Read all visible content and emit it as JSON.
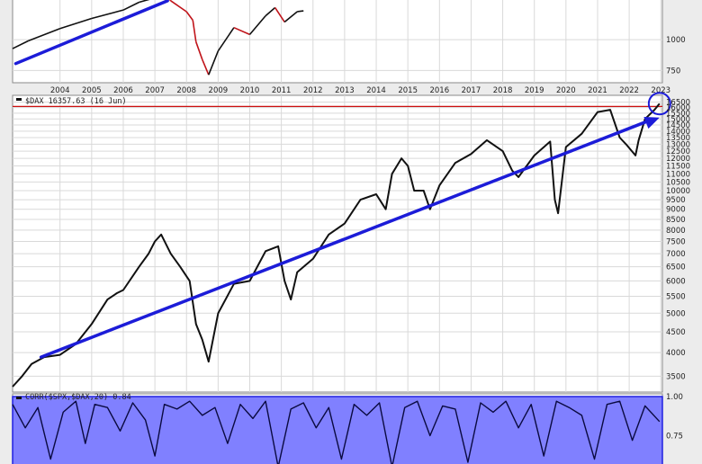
{
  "colors": {
    "price_line": "#111111",
    "top_line_down": "#c0141a",
    "trend_arrow": "#1c1cd8",
    "resistance_line": "#cc1010",
    "corr_fill": "#8080ff",
    "corr_border": "#2020e0"
  },
  "x_axis": {
    "years": [
      "2004",
      "2005",
      "2006",
      "2007",
      "2008",
      "2009",
      "2010",
      "2011",
      "2012",
      "2013",
      "2014",
      "2015",
      "2016",
      "2017",
      "2018",
      "2019",
      "2020",
      "2021",
      "2022",
      "2023"
    ]
  },
  "top_panel": {
    "y_ticks": [
      1000,
      750
    ]
  },
  "dax_panel": {
    "legend": "$DAX 16357.63 (16 Jun)",
    "y_ticks": [
      16500,
      16000,
      15500,
      15000,
      14500,
      14000,
      13500,
      13000,
      12500,
      12000,
      11500,
      11000,
      10500,
      10000,
      9500,
      9000,
      8500,
      8000,
      7500,
      7000,
      6500,
      6000,
      5500,
      5000,
      4500,
      4000,
      3500
    ]
  },
  "corr_panel": {
    "legend": "CORR($SPX,$DAX,20) 0.84",
    "y_ticks": [
      "1.00",
      "0.75"
    ]
  },
  "chart_data": [
    {
      "type": "line",
      "panel": "top",
      "y_scale": "log",
      "ylim": [
        680,
        1450
      ],
      "series": [
        {
          "x": [
            2003.0,
            2003.5,
            2004.5,
            2005.5,
            2006.5,
            2007.0,
            2007.5,
            2007.8,
            2008.0,
            2008.5,
            2008.7,
            2008.8,
            2009.0,
            2009.2,
            2009.5,
            2010.0,
            2010.5,
            2011.0,
            2011.3,
            2011.6,
            2012.0,
            2012.2
          ],
          "y": [
            920,
            990,
            1110,
            1220,
            1320,
            1420,
            1480,
            1540,
            1440,
            1300,
            1200,
            980,
            830,
            720,
            900,
            1120,
            1050,
            1250,
            1350,
            1180,
            1300,
            1310
          ]
        }
      ],
      "trendline": {
        "x": [
          2003.1,
          2007.9
        ],
        "y": [
          800,
          1440
        ]
      }
    },
    {
      "type": "line",
      "panel": "main",
      "title": "$DAX",
      "last_value": 16357.63,
      "y_scale": "log",
      "ylim": [
        3200,
        16800
      ],
      "series": [
        {
          "x": [
            2003.0,
            2003.3,
            2003.6,
            2004.0,
            2004.5,
            2005.0,
            2005.5,
            2006.0,
            2006.3,
            2006.5,
            2007.0,
            2007.3,
            2007.5,
            2007.7,
            2008.0,
            2008.3,
            2008.6,
            2008.8,
            2009.0,
            2009.2,
            2009.5,
            2010.0,
            2010.5,
            2011.0,
            2011.4,
            2011.6,
            2011.8,
            2012.0,
            2012.5,
            2013.0,
            2013.5,
            2014.0,
            2014.5,
            2014.8,
            2015.0,
            2015.3,
            2015.5,
            2015.7,
            2016.0,
            2016.2,
            2016.5,
            2017.0,
            2017.5,
            2018.0,
            2018.5,
            2018.8,
            2019.0,
            2019.5,
            2020.0,
            2020.15,
            2020.25,
            2020.5,
            2021.0,
            2021.5,
            2021.9,
            2022.2,
            2022.4,
            2022.7,
            2022.8,
            2023.0,
            2023.3,
            2023.46
          ],
          "y": [
            3300,
            3500,
            3750,
            3900,
            3950,
            4200,
            4700,
            5400,
            5600,
            5700,
            6500,
            7000,
            7500,
            7800,
            7000,
            6500,
            6000,
            4700,
            4300,
            3800,
            5000,
            5900,
            6000,
            7100,
            7300,
            6000,
            5400,
            6300,
            6800,
            7800,
            8300,
            9500,
            9800,
            9000,
            11000,
            12000,
            11500,
            10000,
            10000,
            9000,
            10300,
            11700,
            12300,
            13300,
            12500,
            11200,
            10800,
            12200,
            13200,
            9500,
            8800,
            12800,
            13800,
            15600,
            15800,
            13500,
            13000,
            12200,
            13300,
            15000,
            15800,
            16357.63
          ]
        }
      ],
      "trendline": {
        "x": [
          2003.9,
          2023.3
        ],
        "y": [
          3900,
          14950
        ]
      },
      "resistance": 16100
    },
    {
      "type": "area",
      "panel": "correlation",
      "title": "CORR($SPX,$DAX,20)",
      "last_value": 0.84,
      "ylim": [
        0.5,
        1.0
      ],
      "series": [
        {
          "x": [
            2003.0,
            2003.4,
            2003.8,
            2004.2,
            2004.6,
            2005.0,
            2005.3,
            2005.6,
            2006.0,
            2006.4,
            2006.8,
            2007.2,
            2007.5,
            2007.8,
            2008.2,
            2008.6,
            2009.0,
            2009.4,
            2009.8,
            2010.2,
            2010.6,
            2011.0,
            2011.4,
            2011.8,
            2012.2,
            2012.6,
            2013.0,
            2013.4,
            2013.8,
            2014.2,
            2014.6,
            2015.0,
            2015.4,
            2015.8,
            2016.2,
            2016.6,
            2017.0,
            2017.4,
            2017.8,
            2018.2,
            2018.6,
            2019.0,
            2019.4,
            2019.8,
            2020.2,
            2020.6,
            2021.0,
            2021.4,
            2021.8,
            2022.2,
            2022.6,
            2023.0,
            2023.46
          ],
          "y": [
            0.95,
            0.8,
            0.93,
            0.6,
            0.9,
            0.97,
            0.7,
            0.95,
            0.93,
            0.78,
            0.96,
            0.85,
            0.62,
            0.95,
            0.92,
            0.97,
            0.88,
            0.93,
            0.7,
            0.95,
            0.86,
            0.97,
            0.55,
            0.92,
            0.96,
            0.8,
            0.93,
            0.6,
            0.95,
            0.88,
            0.96,
            0.55,
            0.93,
            0.97,
            0.75,
            0.94,
            0.92,
            0.58,
            0.96,
            0.9,
            0.97,
            0.8,
            0.95,
            0.62,
            0.97,
            0.93,
            0.88,
            0.6,
            0.95,
            0.97,
            0.72,
            0.94,
            0.84
          ]
        }
      ]
    }
  ]
}
